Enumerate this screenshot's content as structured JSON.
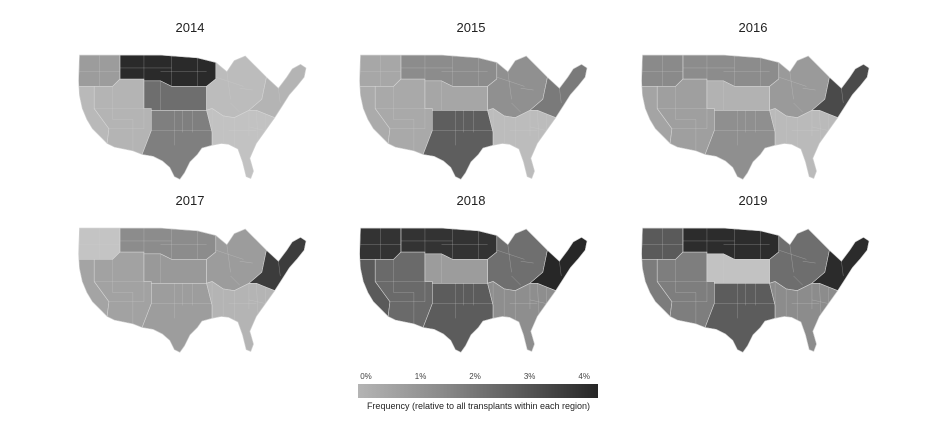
{
  "panels": [
    {
      "year": "2014",
      "regions": {
        "nw": "#9c9c9c",
        "ca": "#b9b9b9",
        "sw": "#b4b4b4",
        "nc": "#2a2a2a",
        "cp": "#6e6e6e",
        "sc": "#7f7f7f",
        "gl": "#bcbcbc",
        "ne": "#b4b4b4",
        "se": "#c2c2c2"
      }
    },
    {
      "year": "2015",
      "regions": {
        "nw": "#a7a7a7",
        "ca": "#ababab",
        "sw": "#a9a9a9",
        "nc": "#8c8c8c",
        "cp": "#a6a6a6",
        "sc": "#5e5e5e",
        "gl": "#909090",
        "ne": "#7a7a7a",
        "se": "#bcbcbc"
      }
    },
    {
      "year": "2016",
      "regions": {
        "nw": "#8a8a8a",
        "ca": "#a4a4a4",
        "sw": "#9f9f9f",
        "nc": "#8c8c8c",
        "cp": "#b2b2b2",
        "sc": "#8f8f8f",
        "gl": "#9a9a9a",
        "ne": "#4a4a4a",
        "se": "#bababa"
      }
    },
    {
      "year": "2017",
      "regions": {
        "nw": "#c4c4c4",
        "ca": "#a4a4a4",
        "sw": "#a2a2a2",
        "nc": "#8c8c8c",
        "cp": "#999999",
        "sc": "#9d9d9d",
        "gl": "#9c9c9c",
        "ne": "#3c3c3c",
        "se": "#b4b4b4"
      }
    },
    {
      "year": "2018",
      "regions": {
        "nw": "#333333",
        "ca": "#5a5a5a",
        "sw": "#6a6a6a",
        "nc": "#333333",
        "cp": "#9c9c9c",
        "sc": "#5c5c5c",
        "gl": "#6f6f6f",
        "ne": "#272727",
        "se": "#8e8e8e"
      }
    },
    {
      "year": "2019",
      "regions": {
        "nw": "#5a5a5a",
        "ca": "#7c7c7c",
        "sw": "#7e7e7e",
        "nc": "#2c2c2c",
        "cp": "#c2c2c2",
        "sc": "#5c5c5c",
        "gl": "#6e6e6e",
        "ne": "#2b2b2b",
        "se": "#8c8c8c"
      }
    }
  ],
  "legend": {
    "ticks": [
      "0%",
      "1%",
      "2%",
      "3%",
      "4%"
    ],
    "tick_values": [
      0,
      1,
      2,
      3,
      4
    ],
    "range": [
      0,
      4.4
    ],
    "caption": "Frequency (relative to all transplants within each region)",
    "colors": {
      "low": "#b4b4b4",
      "high": "#262626"
    }
  }
}
